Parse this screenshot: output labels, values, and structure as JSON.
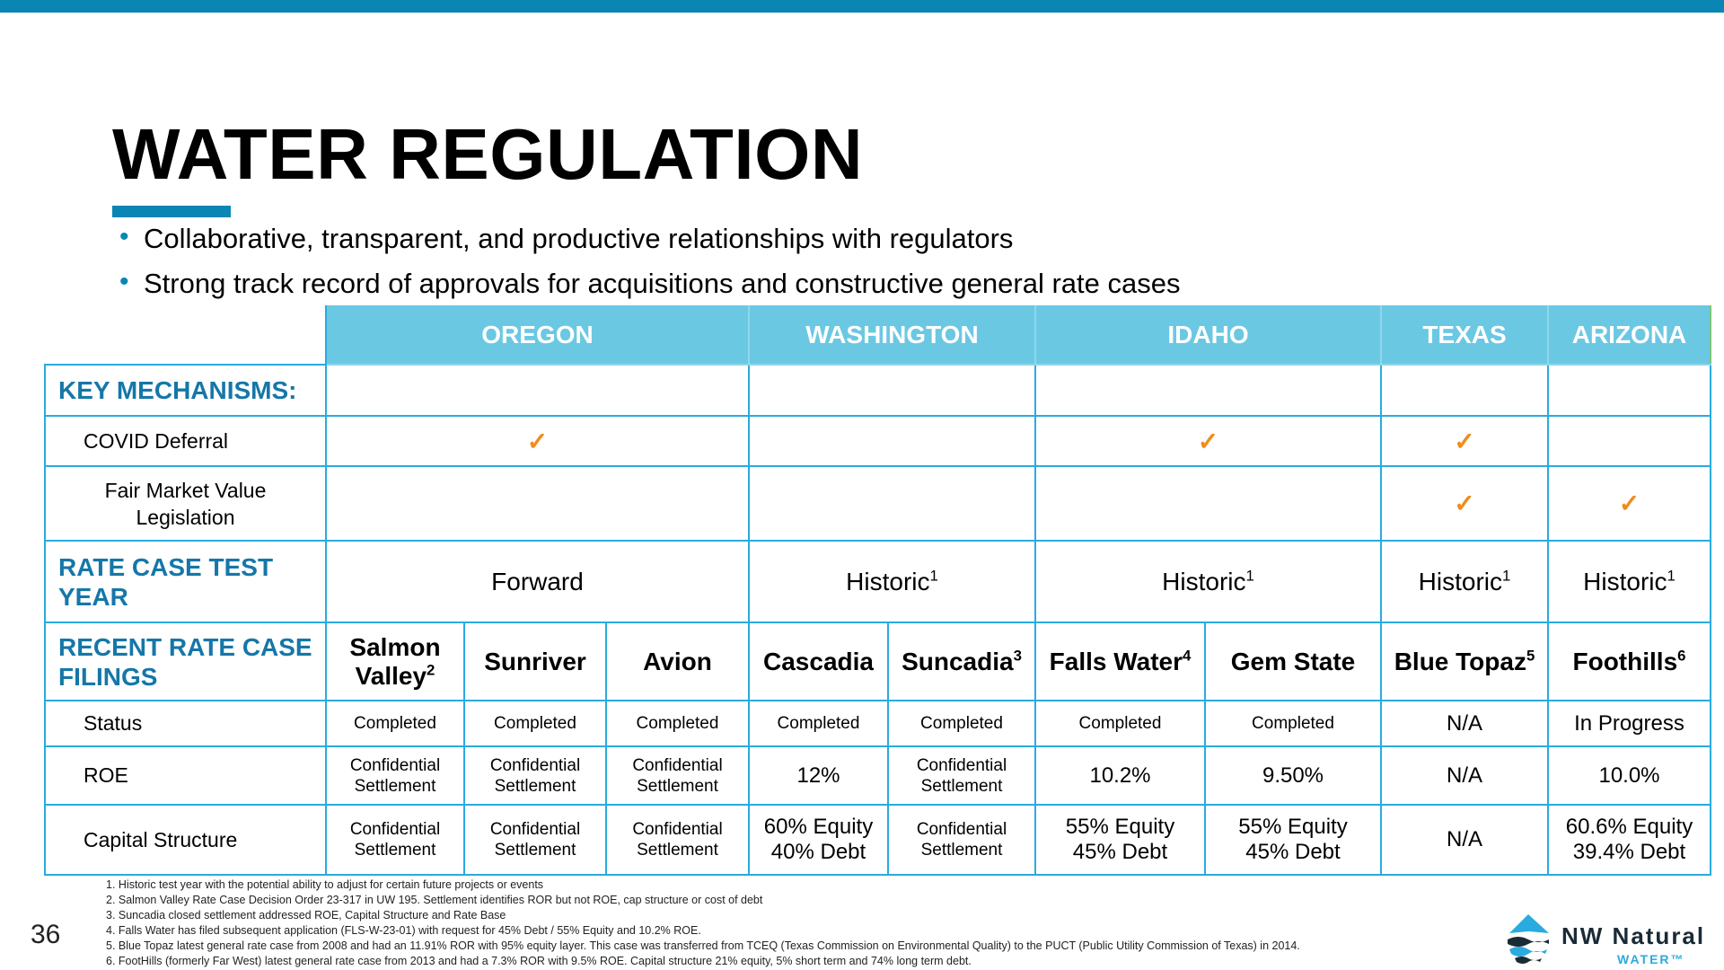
{
  "title": "WATER REGULATION",
  "bullets": [
    "Collaborative, transparent, and productive relationships with regulators",
    "Strong track record of approvals for acquisitions and constructive general rate cases"
  ],
  "table": {
    "states": [
      "OREGON",
      "WASHINGTON",
      "IDAHO",
      "TEXAS",
      "ARIZONA"
    ],
    "key_mechanisms_label": "KEY MECHANISMS:",
    "covid_label": "COVID Deferral",
    "covid_checks": {
      "oregon": "✓",
      "washington": "",
      "idaho": "✓",
      "texas": "✓",
      "arizona": ""
    },
    "fmv_label_line1": "Fair Market Value",
    "fmv_label_line2": "Legislation",
    "fmv_checks": {
      "oregon": "",
      "washington": "",
      "idaho": "",
      "texas": "✓",
      "arizona": "✓"
    },
    "test_year_label": "RATE CASE TEST YEAR",
    "test_year": {
      "oregon": "Forward",
      "washington": "Historic",
      "washington_note": "1",
      "idaho": "Historic",
      "idaho_note": "1",
      "texas": "Historic",
      "texas_note": "1",
      "arizona": "Historic",
      "arizona_note": "1"
    },
    "filings_label": "RECENT RATE CASE FILINGS",
    "companies": [
      {
        "name": "Salmon",
        "name2": "Valley",
        "note": "2",
        "status": "Completed",
        "roe1": "Confidential",
        "roe2": "Settlement",
        "cap1": "Confidential",
        "cap2": "Settlement"
      },
      {
        "name": "Sunriver",
        "note": "",
        "status": "Completed",
        "roe1": "Confidential",
        "roe2": "Settlement",
        "cap1": "Confidential",
        "cap2": "Settlement"
      },
      {
        "name": "Avion",
        "note": "",
        "status": "Completed",
        "roe1": "Confidential",
        "roe2": "Settlement",
        "cap1": "Confidential",
        "cap2": "Settlement"
      },
      {
        "name": "Cascadia",
        "note": "",
        "status": "Completed",
        "roe": "12%",
        "cap1": "60% Equity",
        "cap2": "40% Debt"
      },
      {
        "name": "Suncadia",
        "note": "3",
        "status": "Completed",
        "roe1": "Confidential",
        "roe2": "Settlement",
        "cap1": "Confidential",
        "cap2": "Settlement"
      },
      {
        "name": "Falls Water",
        "note": "4",
        "status": "Completed",
        "roe": "10.2%",
        "cap1": "55% Equity",
        "cap2": "45% Debt"
      },
      {
        "name": "Gem State",
        "note": "",
        "status": "Completed",
        "roe": "9.50%",
        "cap1": "55% Equity",
        "cap2": "45% Debt"
      },
      {
        "name": "Blue Topaz",
        "note": "5",
        "status": "N/A",
        "roe": "N/A",
        "cap": "N/A"
      },
      {
        "name": "Foothills",
        "note": "6",
        "status": "In Progress",
        "roe": "10.0%",
        "cap1": "60.6% Equity",
        "cap2": "39.4% Debt"
      }
    ],
    "status_label": "Status",
    "roe_label": "ROE",
    "capital_label": "Capital Structure"
  },
  "footnotes": [
    "1. Historic test year with the potential ability to adjust for certain future projects or events",
    "2. Salmon Valley Rate Case Decision Order 23-317 in UW 195.  Settlement identifies ROR but not ROE, cap structure or cost of debt",
    "3. Suncadia closed settlement addressed ROE, Capital Structure and Rate Base",
    "4. Falls Water has filed subsequent application (FLS-W-23-01) with request for 45% Debt / 55% Equity and 10.2% ROE.",
    "5. Blue Topaz latest general rate case from 2008 and had an 11.91% ROR with 95% equity layer. This case was transferred from TCEQ (Texas Commission on Environmental Quality) to the PUCT (Public Utility Commission of Texas) in 2014.",
    "6. FootHills (formerly Far West) latest general rate case from 2013 and had a 7.3% ROR with 9.5% ROE. Capital structure 21% equity, 5% short term and 74% long term debt."
  ],
  "page_number": "36",
  "logo": {
    "brand": "NW Natural",
    "sub": "WATER™"
  },
  "colors": {
    "accent": "#0a86b4",
    "header_fill": "#6bc8e3",
    "border": "#29abe0",
    "section_text": "#1577a8",
    "check": "#f08c1c"
  }
}
